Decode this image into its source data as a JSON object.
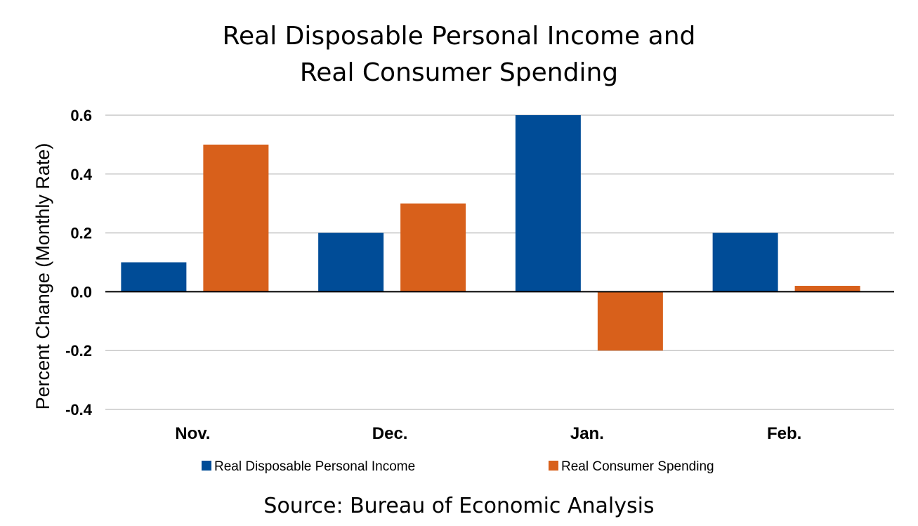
{
  "chart_data": {
    "type": "bar",
    "title_lines": [
      "Real Disposable Personal Income and",
      "Real Consumer Spending"
    ],
    "ylabel": "Percent Change (Monthly Rate)",
    "xlabel": "",
    "categories": [
      "Nov.",
      "Dec.",
      "Jan.",
      "Feb."
    ],
    "series": [
      {
        "name": "Real Disposable Personal Income",
        "color": "#004C97",
        "values": [
          0.1,
          0.2,
          0.6,
          0.2
        ]
      },
      {
        "name": "Real Consumer Spending",
        "color": "#D8601B",
        "values": [
          0.5,
          0.3,
          -0.2,
          0.02
        ]
      }
    ],
    "ylim": [
      -0.4,
      0.6
    ],
    "yticks": [
      0.6,
      0.4,
      0.2,
      0.0,
      -0.2,
      -0.4
    ],
    "ytick_labels": [
      "0.6",
      "0.4",
      "0.2",
      "0.0",
      "-0.2",
      "-0.4"
    ],
    "grid": true,
    "legend_position": "bottom",
    "source": "Source:  Bureau of Economic Analysis"
  }
}
